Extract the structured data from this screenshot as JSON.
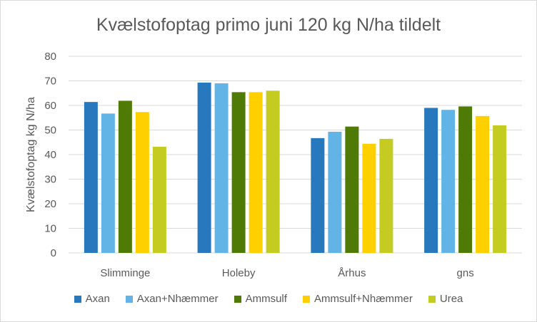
{
  "chart_data": {
    "type": "bar",
    "title": "Kvælstofoptag primo juni 120 kg N/ha tildelt",
    "xlabel": "",
    "ylabel": "Kvælstofoptag kg N/ha",
    "ylim": [
      0,
      80
    ],
    "yticks": [
      "0",
      "10",
      "20",
      "30",
      "40",
      "50",
      "60",
      "70",
      "80"
    ],
    "grid": true,
    "legend_position": "bottom",
    "categories": [
      "Slimminge",
      "Holeby",
      "Århus",
      "gns"
    ],
    "series": [
      {
        "name": "Axan",
        "color": "#2878BD",
        "values": [
          61.4,
          69.3,
          46.7,
          59.0
        ]
      },
      {
        "name": "Axan+Nhæmmer",
        "color": "#63B4E6",
        "values": [
          56.7,
          69.0,
          49.3,
          58.2
        ]
      },
      {
        "name": "Ammsulf",
        "color": "#507A06",
        "values": [
          61.9,
          65.4,
          51.4,
          59.6
        ]
      },
      {
        "name": "Ammsulf+Nhæmmer",
        "color": "#FFD000",
        "values": [
          57.3,
          65.4,
          44.4,
          55.7
        ]
      },
      {
        "name": "Urea",
        "color": "#C4CC22",
        "values": [
          43.2,
          66.0,
          46.4,
          51.9
        ]
      }
    ]
  }
}
